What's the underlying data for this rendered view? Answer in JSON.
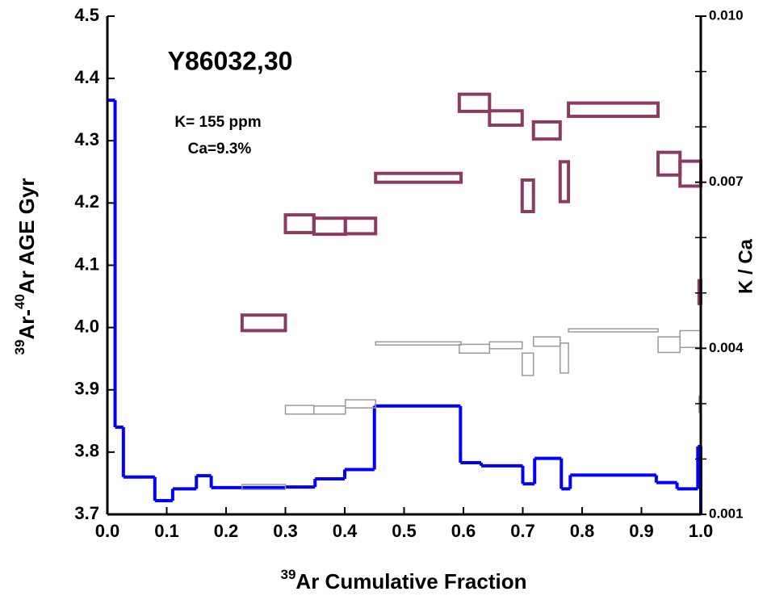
{
  "chart_data": {
    "type": "step",
    "title": "Y86032,30",
    "annotations": [
      "K= 155 ppm",
      "Ca=9.3%"
    ],
    "xlabel": {
      "sup": "39",
      "text": "Ar Cumulative Fraction"
    },
    "ylabel": [
      {
        "sup": "39"
      },
      {
        "text": "Ar-"
      },
      {
        "sup": "40"
      },
      {
        "text": "Ar AGE Gyr"
      }
    ],
    "y2label": "K / Ca",
    "xlim": [
      0,
      1
    ],
    "xticks": [
      {
        "value": 0,
        "label": "0.0"
      },
      0.1,
      0.2,
      0.3,
      0.4,
      0.5,
      0.6,
      0.7,
      0.8,
      0.9,
      {
        "value": 1,
        "label": "1.0"
      }
    ],
    "ylim": [
      3.7,
      4.5
    ],
    "yticks": [
      3.7,
      3.8,
      3.9,
      {
        "value": 4,
        "label": "4.0"
      },
      4.1,
      4.2,
      4.3,
      4.4,
      4.5
    ],
    "y2lim": [
      0.001,
      0.01
    ],
    "y2ticks": [
      0.001,
      0.004,
      0.007,
      {
        "value": 0.01,
        "label": "0.010"
      }
    ],
    "y2minorticks": [
      0.002,
      0.003,
      0.005,
      0.006,
      0.008,
      0.009
    ],
    "series": [
      {
        "type": "step",
        "color": "#0000ff",
        "bins": [
          0,
          0.013,
          0.027,
          0.08,
          0.11,
          0.15,
          0.175,
          0.3,
          0.35,
          0.4,
          0.45,
          0.595,
          0.63,
          0.7,
          0.72,
          0.765,
          0.78,
          0.925,
          0.96,
          0.995,
          1
        ],
        "values": [
          4.365,
          3.84,
          3.76,
          3.722,
          3.741,
          3.762,
          3.743,
          3.744,
          3.757,
          3.772,
          3.874,
          3.783,
          3.778,
          3.749,
          3.79,
          3.741,
          3.763,
          3.751,
          3.741,
          3.809
        ]
      },
      {
        "type": "box",
        "color": "#8b3a62",
        "axis": "y2",
        "x_start": [
          0.227,
          0.3,
          0.348,
          0.401,
          0.452,
          0.593,
          0.644,
          0.699,
          0.718,
          0.763,
          0.777,
          0.928,
          0.965,
          0.997
        ],
        "x_end": [
          0.3,
          0.348,
          0.401,
          0.452,
          0.596,
          0.644,
          0.699,
          0.718,
          0.763,
          0.777,
          0.928,
          0.965,
          1,
          1
        ],
        "low": [
          0.00432,
          0.00609,
          0.00606,
          0.00607,
          0.007,
          0.00828,
          0.00803,
          0.00647,
          0.00778,
          0.00665,
          0.00819,
          0.00713,
          0.00693,
          0.00481
        ],
        "high": [
          0.0046,
          0.00641,
          0.00635,
          0.00635,
          0.00716,
          0.00859,
          0.00829,
          0.00704,
          0.00809,
          0.00737,
          0.00843,
          0.00754,
          0.00738,
          0.00522
        ]
      },
      {
        "type": "box",
        "color": "#999999",
        "x_start": [
          0.227,
          0.3,
          0.348,
          0.401,
          0.452,
          0.593,
          0.644,
          0.699,
          0.718,
          0.763,
          0.777,
          0.928,
          0.965,
          0.997
        ],
        "x_end": [
          0.3,
          0.348,
          0.401,
          0.452,
          0.596,
          0.644,
          0.699,
          0.718,
          0.763,
          0.777,
          0.928,
          0.965,
          1,
          1
        ],
        "low": [
          3.74,
          3.861,
          3.861,
          3.871,
          3.972,
          3.959,
          3.966,
          3.923,
          3.97,
          3.927,
          3.993,
          3.96,
          3.968,
          3.864
        ],
        "high": [
          3.748,
          3.875,
          3.874,
          3.884,
          3.977,
          3.973,
          3.977,
          3.959,
          3.985,
          3.975,
          3.998,
          3.985,
          3.995,
          3.89
        ]
      }
    ]
  }
}
